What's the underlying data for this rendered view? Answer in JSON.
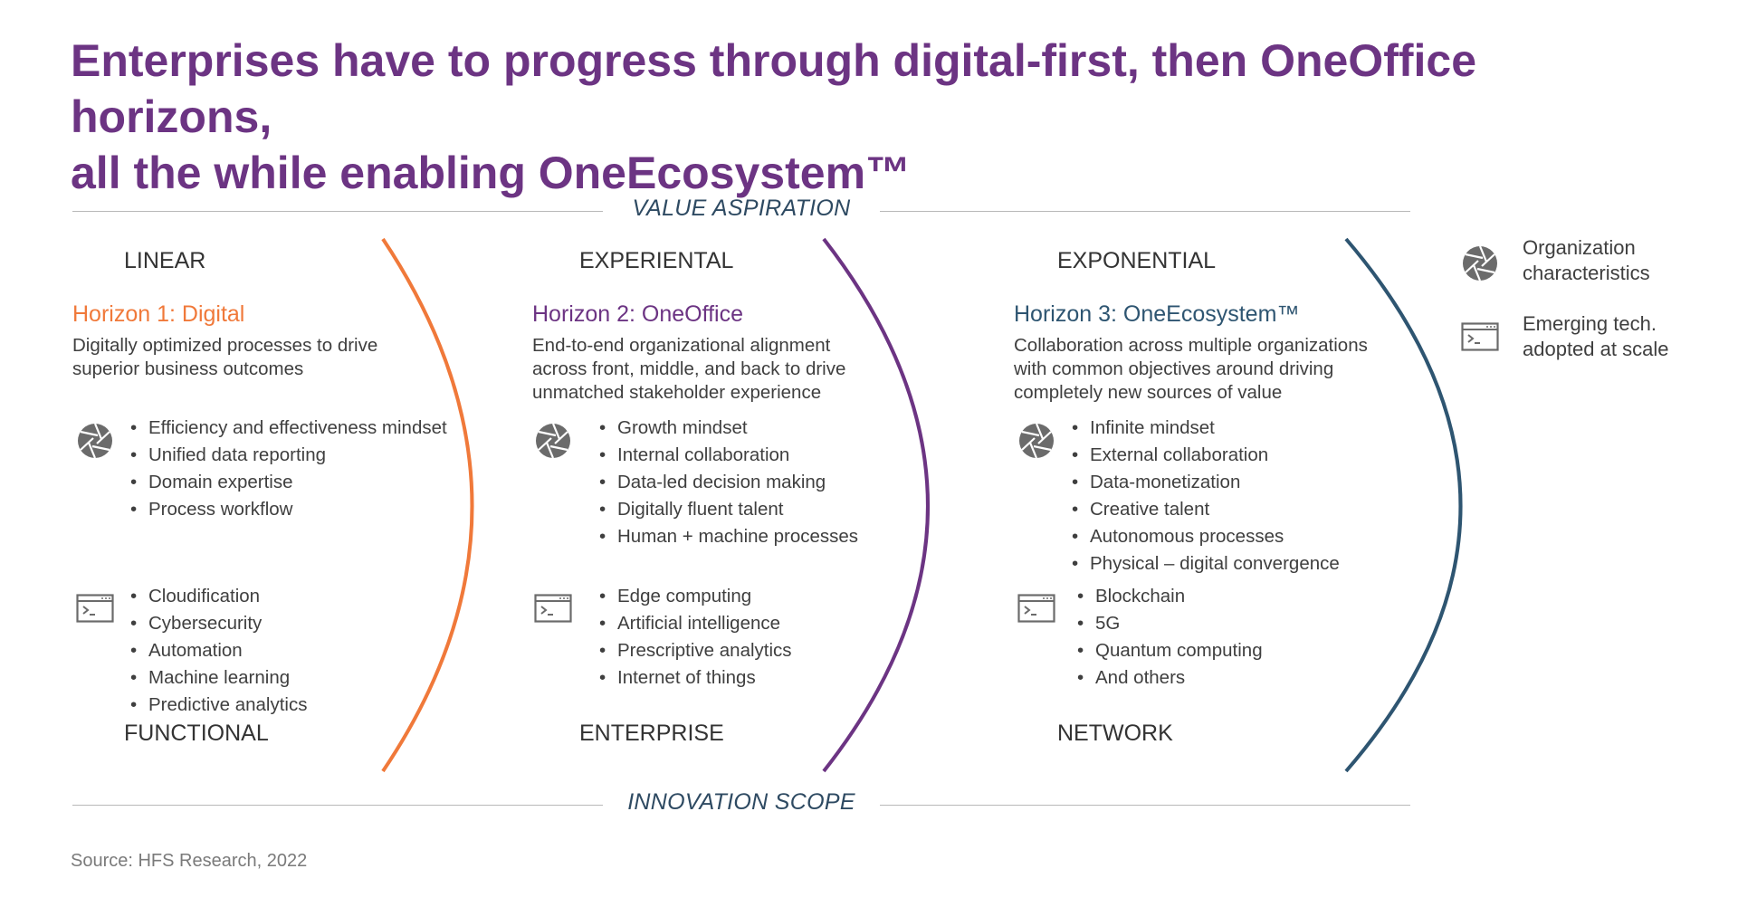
{
  "title": {
    "line1": "Enterprises have to progress through digital-first, then OneOffice horizons,",
    "line2": "all the while enabling OneEcosystem™"
  },
  "value_aspiration": "VALUE ASPIRATION",
  "innovation_scope": "INNOVATION SCOPE",
  "colors": {
    "title": "#6c3483",
    "horizon1": "#f0793a",
    "horizon2": "#6c3483",
    "horizon3": "#2e5571",
    "icon": "#6b6b6b",
    "rule": "#b8b8b8"
  },
  "columns": [
    {
      "top_label": "LINEAR",
      "bottom_label": "FUNCTIONAL",
      "horizon_title": "Horizon 1: Digital",
      "description": [
        "Digitally optimized processes to drive",
        "superior business outcomes"
      ],
      "org_icon": "aperture-icon",
      "org_items": [
        "Efficiency and effectiveness mindset",
        "Unified data reporting",
        "Domain expertise",
        "Process workflow"
      ],
      "tech_icon": "terminal-icon",
      "tech_items": [
        "Cloudification",
        "Cybersecurity",
        "Automation",
        "Machine learning",
        "Predictive analytics"
      ]
    },
    {
      "top_label": "EXPERIENTAL",
      "bottom_label": "ENTERPRISE",
      "horizon_title": "Horizon 2: OneOffice",
      "description": [
        "End-to-end organizational alignment",
        "across front, middle, and back to drive",
        "unmatched stakeholder experience"
      ],
      "org_icon": "aperture-icon",
      "org_items": [
        "Growth mindset",
        "Internal collaboration",
        "Data-led decision making",
        "Digitally fluent talent",
        "Human + machine processes"
      ],
      "tech_icon": "terminal-icon",
      "tech_items": [
        "Edge computing",
        "Artificial intelligence",
        "Prescriptive analytics",
        "Internet of things"
      ]
    },
    {
      "top_label": "EXPONENTIAL",
      "bottom_label": "NETWORK",
      "horizon_title": "Horizon 3: OneEcosystem™",
      "description": [
        "Collaboration across multiple organizations",
        "with common objectives around driving",
        "completely new sources of value"
      ],
      "org_icon": "aperture-icon",
      "org_items": [
        "Infinite mindset",
        "External collaboration",
        "Data-monetization",
        "Creative talent",
        "Autonomous processes",
        "Physical – digital convergence"
      ],
      "tech_icon": "terminal-icon",
      "tech_items": [
        "Blockchain",
        "5G",
        "Quantum computing",
        "And others"
      ]
    }
  ],
  "legend": {
    "org": [
      "Organization",
      "characteristics"
    ],
    "tech": [
      "Emerging tech.",
      "adopted at scale"
    ]
  },
  "source": "Source: HFS Research, 2022"
}
